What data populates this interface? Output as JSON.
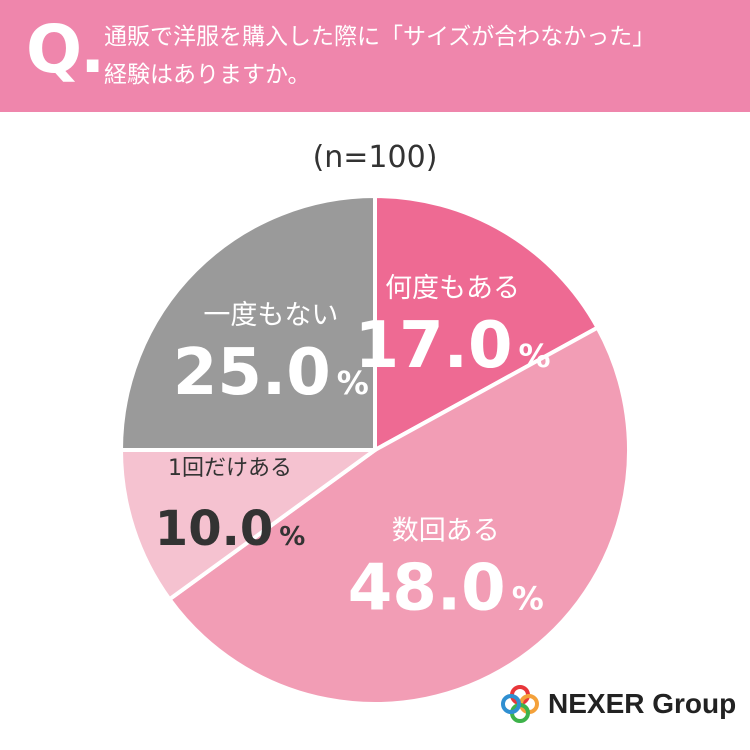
{
  "header": {
    "q_label": "Q.",
    "question_line1": "通販で洋服を購入した際に「サイズが合わなかった」",
    "question_line2": "経験はありますか。"
  },
  "sample_size": "(n=100)",
  "chart_data": {
    "type": "pie",
    "categories": [
      "何度もある",
      "数回ある",
      "1回だけある",
      "一度もない"
    ],
    "values": [
      17.0,
      48.0,
      10.0,
      25.0
    ],
    "value_labels": [
      "17.0",
      "48.0",
      "10.0",
      "25.0"
    ],
    "unit": "%",
    "colors": [
      "#ee6a93",
      "#f29db5",
      "#f5c2d0",
      "#9a9a9a"
    ],
    "label_colors": [
      "#ffffff",
      "#ffffff",
      "#333333",
      "#ffffff"
    ],
    "start_angle_deg": 0,
    "direction": "clockwise"
  },
  "logo": {
    "text": "NEXER Group",
    "colors": [
      "#e8363a",
      "#f4a13a",
      "#3db24a",
      "#2f8fd1"
    ]
  }
}
